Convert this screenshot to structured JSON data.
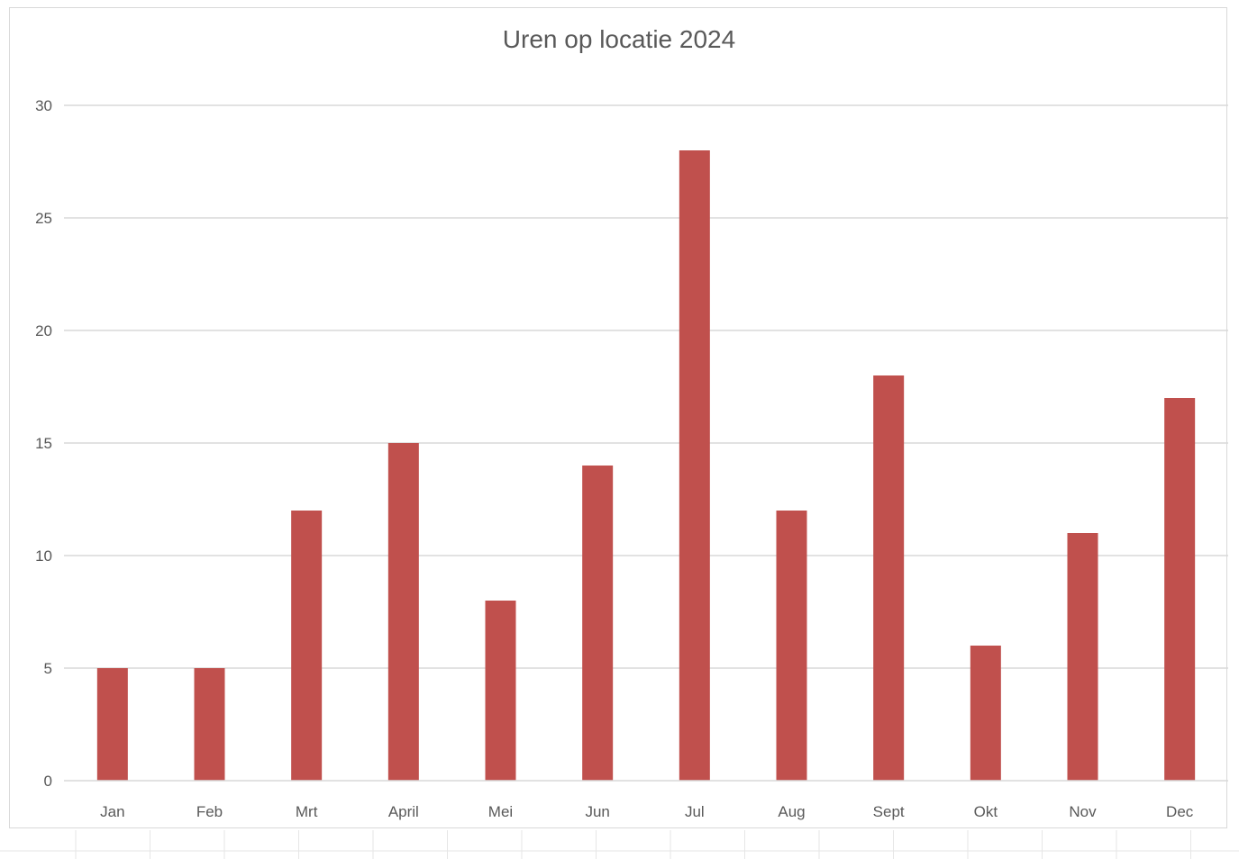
{
  "chart_data": {
    "type": "bar",
    "title": "Uren op locatie 2024",
    "xlabel": "",
    "ylabel": "",
    "categories": [
      "Jan",
      "Feb",
      "Mrt",
      "April",
      "Mei",
      "Jun",
      "Jul",
      "Aug",
      "Sept",
      "Okt",
      "Nov",
      "Dec"
    ],
    "values": [
      5,
      5,
      12,
      15,
      8,
      14,
      28,
      12,
      18,
      6,
      11,
      17
    ],
    "ylim": [
      0,
      30
    ],
    "yticks": [
      0,
      5,
      10,
      15,
      20,
      25,
      30
    ],
    "grid": true,
    "legend": "none",
    "bar_color": "#C0504D",
    "gridline_color": "#D9D9D9",
    "text_color": "#595959"
  }
}
